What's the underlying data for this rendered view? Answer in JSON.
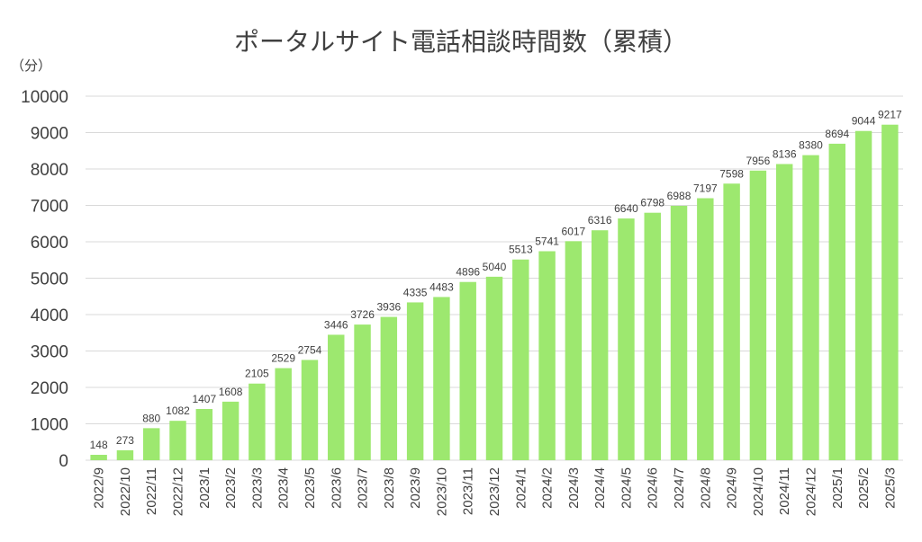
{
  "chart_data": {
    "type": "bar",
    "title": "ポータルサイト電話相談時間数（累積）",
    "unit_label": "（分）",
    "ylim": [
      0,
      10000
    ],
    "y_ticks": [
      "0",
      "1000",
      "2000",
      "3000",
      "4000",
      "5000",
      "6000",
      "7000",
      "8000",
      "9000",
      "10000"
    ],
    "grid": true,
    "bar_color": "#9de86f",
    "categories": [
      "2022/9",
      "2022/10",
      "2022/11",
      "2022/12",
      "2023/1",
      "2023/2",
      "2023/3",
      "2023/4",
      "2023/5",
      "2023/6",
      "2023/7",
      "2023/8",
      "2023/9",
      "2023/10",
      "2023/11",
      "2023/12",
      "2024/1",
      "2024/2",
      "2024/3",
      "2024/4",
      "2024/5",
      "2024/6",
      "2024/7",
      "2024/8",
      "2024/9",
      "2024/10",
      "2024/11",
      "2024/12",
      "2025/1",
      "2025/2",
      "2025/3"
    ],
    "values": [
      148,
      273,
      880,
      1082,
      1407,
      1608,
      2105,
      2529,
      2754,
      3446,
      3726,
      3936,
      4335,
      4483,
      4896,
      5040,
      5513,
      5741,
      6017,
      6316,
      6640,
      6798,
      6988,
      7197,
      7598,
      7956,
      8136,
      8380,
      8694,
      9044,
      9217
    ]
  }
}
